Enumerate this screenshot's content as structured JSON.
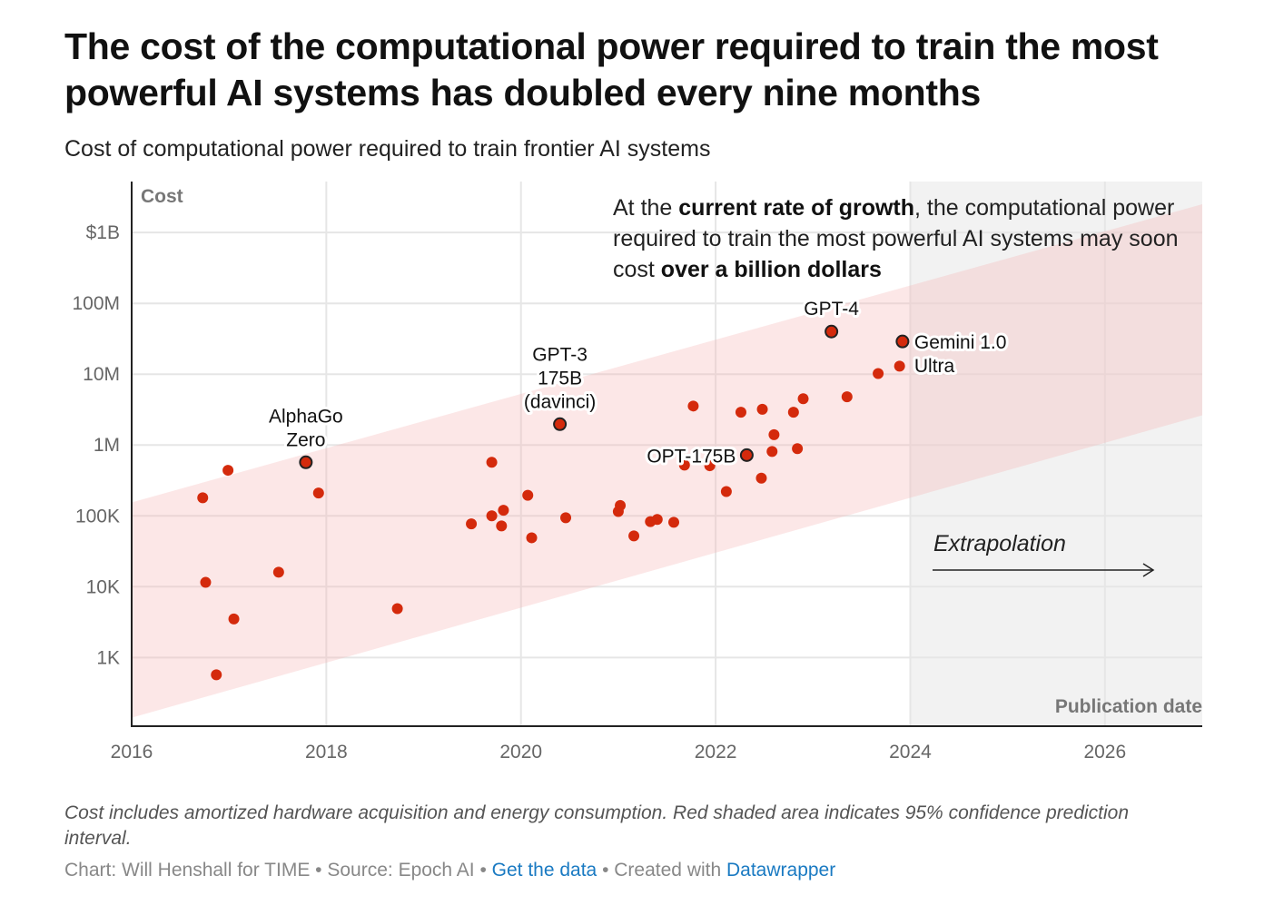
{
  "title": "The cost of the computational power required to train the most powerful AI systems has doubled every nine months",
  "subtitle": "Cost of computational power required to train frontier AI systems",
  "annotation": {
    "p1": "At the ",
    "b1": "current rate of growth",
    "p2": ", the computational power required to train the most powerful AI systems may soon cost ",
    "b2": "over a billion dollars"
  },
  "note": "Cost includes amortized hardware acquisition and energy consumption. Red shaded area indicates 95% confidence prediction interval.",
  "credit": {
    "text1": "Chart: Will Henshall for TIME • Source: Epoch AI • ",
    "link1": "Get the data",
    "text2": " • Created with ",
    "link2": "Datawrapper"
  },
  "colors": {
    "point": "#d42a0c",
    "band": "#fde6e6",
    "extrapolation": "#f2f2f2",
    "grid": "#e6e6e6"
  },
  "chart_data": {
    "type": "scatter",
    "title": "Cost of computational power required to train frontier AI systems",
    "xlabel": "Publication date",
    "ylabel": "Cost",
    "xscale": "linear",
    "yscale": "log",
    "xlim": [
      2016,
      2027.0
    ],
    "ylim_log10": [
      2.03,
      9.72
    ],
    "xticks": [
      2016,
      2018,
      2020,
      2022,
      2024,
      2026
    ],
    "xtick_labels": [
      "2016",
      "2018",
      "2020",
      "2022",
      "2024",
      "2026"
    ],
    "yticks_log10": [
      3,
      4,
      5,
      6,
      7,
      8,
      9
    ],
    "ytick_labels": [
      "1K",
      "10K",
      "100K",
      "1M",
      "10M",
      "100M",
      "$1B"
    ],
    "grid": true,
    "extrapolation": {
      "start": 2024,
      "label": "Extrapolation"
    },
    "confidence_band": {
      "label": "95% confidence prediction interval",
      "x": [
        2016,
        2027.0
      ],
      "upper_log10": [
        5.19,
        9.4
      ],
      "lower_log10": [
        2.15,
        6.42
      ]
    },
    "points": [
      {
        "x": 2016.73,
        "y": 180000
      },
      {
        "x": 2016.76,
        "y": 11500
      },
      {
        "x": 2016.87,
        "y": 570
      },
      {
        "x": 2016.99,
        "y": 440000
      },
      {
        "x": 2017.05,
        "y": 3500
      },
      {
        "x": 2017.51,
        "y": 16000
      },
      {
        "x": 2017.79,
        "y": 570000,
        "label": "AlphaGo\nZero",
        "highlight": true
      },
      {
        "x": 2017.92,
        "y": 210000
      },
      {
        "x": 2018.73,
        "y": 4900
      },
      {
        "x": 2019.49,
        "y": 77000
      },
      {
        "x": 2019.7,
        "y": 570000
      },
      {
        "x": 2019.7,
        "y": 100000
      },
      {
        "x": 2019.8,
        "y": 72000
      },
      {
        "x": 2019.82,
        "y": 120000
      },
      {
        "x": 2020.07,
        "y": 195000
      },
      {
        "x": 2020.11,
        "y": 49000
      },
      {
        "x": 2020.4,
        "y": 1970000,
        "label": "GPT-3\n175B\n(davinci)",
        "highlight": true
      },
      {
        "x": 2020.46,
        "y": 94000
      },
      {
        "x": 2021.02,
        "y": 140000
      },
      {
        "x": 2021.0,
        "y": 115000
      },
      {
        "x": 2021.16,
        "y": 52000
      },
      {
        "x": 2021.33,
        "y": 83000
      },
      {
        "x": 2021.4,
        "y": 89000
      },
      {
        "x": 2021.57,
        "y": 81000
      },
      {
        "x": 2021.77,
        "y": 3550000
      },
      {
        "x": 2021.68,
        "y": 520000
      },
      {
        "x": 2021.94,
        "y": 510000
      },
      {
        "x": 2022.11,
        "y": 220000
      },
      {
        "x": 2022.26,
        "y": 2900000
      },
      {
        "x": 2022.32,
        "y": 720000,
        "label": "OPT-175B",
        "highlight": true
      },
      {
        "x": 2022.47,
        "y": 340000
      },
      {
        "x": 2022.48,
        "y": 3200000
      },
      {
        "x": 2022.58,
        "y": 810000
      },
      {
        "x": 2022.6,
        "y": 1400000
      },
      {
        "x": 2022.8,
        "y": 2900000
      },
      {
        "x": 2022.84,
        "y": 890000
      },
      {
        "x": 2022.9,
        "y": 4500000
      },
      {
        "x": 2023.19,
        "y": 40000000,
        "label": "GPT-4",
        "highlight": true
      },
      {
        "x": 2023.35,
        "y": 4800000
      },
      {
        "x": 2023.67,
        "y": 10200000
      },
      {
        "x": 2023.89,
        "y": 13000000
      },
      {
        "x": 2023.92,
        "y": 29000000,
        "label": "Gemini 1.0\nUltra",
        "highlight": true
      }
    ]
  }
}
